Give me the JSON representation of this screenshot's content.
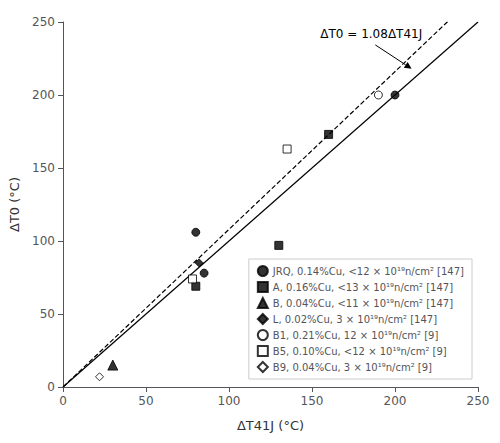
{
  "chart_data": {
    "type": "scatter",
    "xlabel": "ΔT41J (°C)",
    "ylabel": "ΔT0 (°C)",
    "xlim": [
      0,
      250
    ],
    "ylim": [
      0,
      250
    ],
    "xticks": [
      0,
      50,
      100,
      150,
      200,
      250
    ],
    "yticks": [
      0,
      50,
      100,
      150,
      200,
      250
    ],
    "grid": false,
    "legend": "lower right",
    "reference_lines": [
      {
        "slope": 1,
        "line_style": "solid",
        "color": "#000000"
      },
      {
        "slope": 1.08,
        "line_style": "dashed",
        "color": "#000000"
      }
    ],
    "annotations": [
      {
        "text": "ΔT0 = 1.08ΔT41J",
        "x": 155,
        "y": 235,
        "arrow_x": 210,
        "arrow_y": 218
      }
    ],
    "series": [
      {
        "name": "JRQ, 0.14%Cu, <12 × 10¹⁹n/cm² [147]",
        "color": "#000000",
        "marker": "circle",
        "x": [
          80,
          85,
          200
        ],
        "values": [
          106,
          78,
          200
        ]
      },
      {
        "name": "A, 0.16%Cu, <13 × 10¹⁹n/cm² [147]",
        "color": "#000000",
        "marker": "square",
        "x": [
          80,
          130,
          160
        ],
        "values": [
          69,
          97,
          173
        ]
      },
      {
        "name": "B, 0.04%Cu, <11 × 10¹⁹n/cm² [147]",
        "color": "#000000",
        "marker": "triangle",
        "x": [
          30
        ],
        "values": [
          15
        ]
      },
      {
        "name": "L, 0.02%Cu, 3 × 10¹⁹n/cm² [147]",
        "color": "#000000",
        "marker": "diamond",
        "x": [
          82
        ],
        "values": [
          85
        ]
      },
      {
        "name": "B1, 0.21%Cu, 12 × 10¹⁹n/cm² [9]",
        "color": "#000000",
        "marker": "circle-open",
        "x": [
          190
        ],
        "values": [
          200
        ]
      },
      {
        "name": "B5, 0.10%Cu, <12 × 10¹⁹n/cm² [9]",
        "color": "#000000",
        "marker": "square-open",
        "x": [
          135,
          78
        ],
        "values": [
          163,
          74
        ]
      },
      {
        "name": "B9, 0.04%Cu, 3 × 10¹⁹n/cm² [9]",
        "color": "#000000",
        "marker": "diamond-open",
        "x": [
          22
        ],
        "values": [
          7
        ]
      }
    ]
  }
}
